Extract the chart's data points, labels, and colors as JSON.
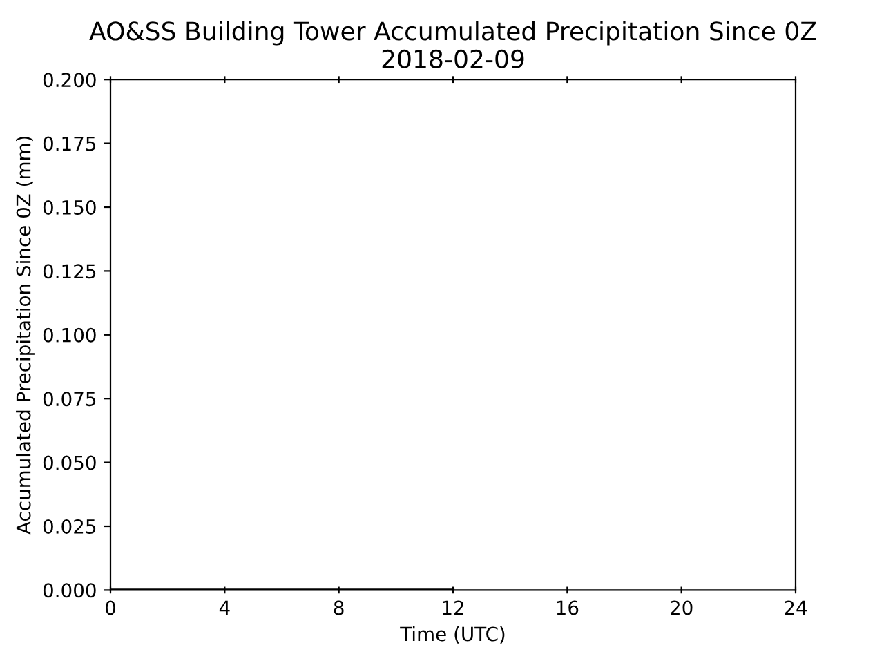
{
  "chart_data": {
    "type": "line",
    "title": "AO&SS Building Tower Accumulated Precipitation Since 0Z\n2018-02-09",
    "xlabel": "Time (UTC)",
    "ylabel": "Accumulated Precipitation Since 0Z (mm)",
    "x": [
      0,
      12
    ],
    "series": [
      {
        "color": "#000000",
        "values": [
          0,
          0
        ]
      }
    ],
    "xlim": [
      0,
      24
    ],
    "xticks": [
      0,
      4,
      8,
      12,
      16,
      20,
      24
    ],
    "ylim": [
      0,
      0.2
    ],
    "yticks": [
      {
        "value": 0,
        "label": "0.000"
      },
      {
        "value": 0.025,
        "label": "0.025"
      },
      {
        "value": 0.05,
        "label": "0.050"
      },
      {
        "value": 0.075,
        "label": "0.075"
      },
      {
        "value": 0.1,
        "label": "0.100"
      },
      {
        "value": 0.125,
        "label": "0.125"
      },
      {
        "value": 0.15,
        "label": "0.150"
      },
      {
        "value": 0.175,
        "label": "0.175"
      },
      {
        "value": 0.2,
        "label": "0.200"
      }
    ],
    "grid": false,
    "legend": false
  }
}
